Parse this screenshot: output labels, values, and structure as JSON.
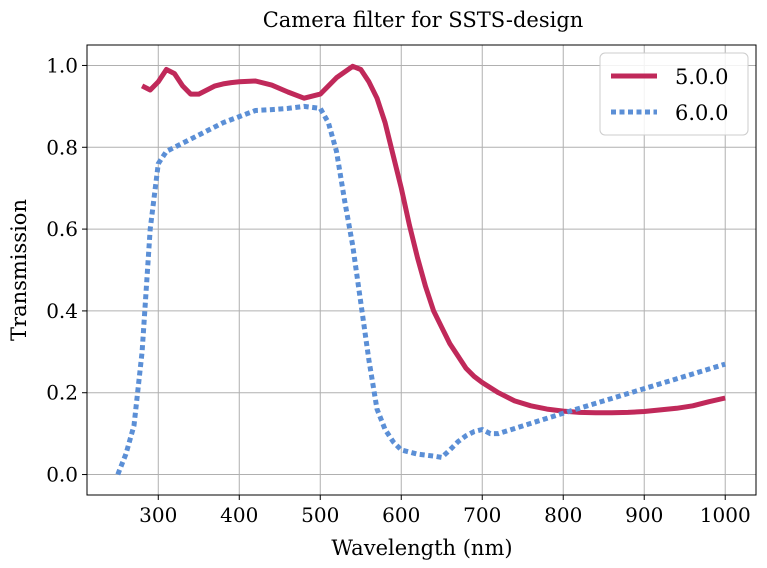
{
  "chart_data": {
    "type": "line",
    "title": "Camera filter for SSTS-design",
    "xlabel": "Wavelength (nm)",
    "ylabel": "Transmission",
    "xlim": [
      212,
      1038
    ],
    "ylim": [
      -0.05,
      1.05
    ],
    "xticks": [
      300,
      400,
      500,
      600,
      700,
      800,
      900,
      1000
    ],
    "yticks": [
      0.0,
      0.2,
      0.4,
      0.6,
      0.8,
      1.0
    ],
    "xtick_labels": [
      "300",
      "400",
      "500",
      "600",
      "700",
      "800",
      "900",
      "1000"
    ],
    "ytick_labels": [
      "0.0",
      "0.2",
      "0.4",
      "0.6",
      "0.8",
      "1.0"
    ],
    "grid": true,
    "legend_position": "top-right",
    "series": [
      {
        "name": "5.0.0",
        "color": "#c0295a",
        "style": "solid",
        "x": [
          280,
          290,
          300,
          310,
          320,
          330,
          340,
          350,
          360,
          370,
          380,
          390,
          400,
          420,
          440,
          460,
          480,
          500,
          520,
          540,
          550,
          560,
          570,
          580,
          590,
          600,
          610,
          620,
          630,
          640,
          650,
          660,
          670,
          680,
          690,
          700,
          720,
          740,
          760,
          780,
          800,
          820,
          840,
          860,
          880,
          900,
          920,
          940,
          960,
          980,
          1000
        ],
        "y": [
          0.95,
          0.94,
          0.96,
          0.99,
          0.98,
          0.95,
          0.93,
          0.93,
          0.94,
          0.95,
          0.955,
          0.958,
          0.96,
          0.962,
          0.952,
          0.935,
          0.92,
          0.93,
          0.97,
          0.998,
          0.99,
          0.96,
          0.92,
          0.86,
          0.78,
          0.7,
          0.61,
          0.53,
          0.46,
          0.4,
          0.36,
          0.32,
          0.29,
          0.26,
          0.24,
          0.225,
          0.2,
          0.18,
          0.168,
          0.16,
          0.155,
          0.152,
          0.151,
          0.151,
          0.152,
          0.154,
          0.158,
          0.162,
          0.168,
          0.178,
          0.187
        ]
      },
      {
        "name": "6.0.0",
        "color": "#5b8fd6",
        "style": "dotted",
        "x": [
          250,
          260,
          270,
          280,
          290,
          300,
          310,
          320,
          340,
          360,
          380,
          400,
          420,
          440,
          460,
          480,
          500,
          510,
          520,
          530,
          540,
          550,
          560,
          570,
          580,
          590,
          600,
          620,
          640,
          650,
          660,
          670,
          680,
          690,
          700,
          710,
          720,
          760,
          800,
          850,
          900,
          950,
          1000
        ],
        "y": [
          0.0,
          0.05,
          0.12,
          0.3,
          0.6,
          0.76,
          0.79,
          0.8,
          0.82,
          0.84,
          0.86,
          0.875,
          0.89,
          0.892,
          0.895,
          0.9,
          0.895,
          0.86,
          0.79,
          0.67,
          0.56,
          0.42,
          0.28,
          0.16,
          0.11,
          0.08,
          0.06,
          0.05,
          0.045,
          0.042,
          0.06,
          0.08,
          0.095,
          0.105,
          0.11,
          0.1,
          0.1,
          0.125,
          0.15,
          0.18,
          0.21,
          0.24,
          0.27
        ]
      }
    ]
  }
}
